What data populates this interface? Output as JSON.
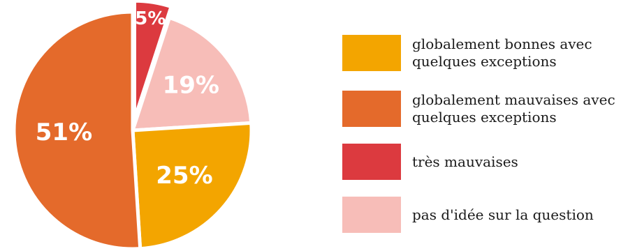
{
  "chart_data": {
    "type": "pie",
    "start_angle_deg": 0,
    "slices": [
      {
        "label": "très mauvaises",
        "value": 5,
        "display": "5%",
        "color": "#dc3a3f",
        "explode": 1
      },
      {
        "label": "pas d'idée sur la question",
        "value": 19,
        "display": "19%",
        "color": "#f7bdb8",
        "explode": 0
      },
      {
        "label": "globalement bonnes avec quelques exceptions",
        "value": 25,
        "display": "25%",
        "color": "#f3a500",
        "explode": 0
      },
      {
        "label": "globalement mauvaises avec quelques exceptions",
        "value": 51,
        "display": "51%",
        "color": "#e46a2b",
        "explode": 0
      }
    ],
    "legend": {
      "position": "right",
      "items": [
        {
          "label": "globalement bonnes avec quelques exceptions",
          "color": "#f3a500"
        },
        {
          "label": "globalement mauvaises avec quelques exceptions",
          "color": "#e46a2b"
        },
        {
          "label": "très mauvaises",
          "color": "#dc3a3f"
        },
        {
          "label": "pas d'idée sur la question",
          "color": "#f7bdb8"
        }
      ]
    }
  }
}
